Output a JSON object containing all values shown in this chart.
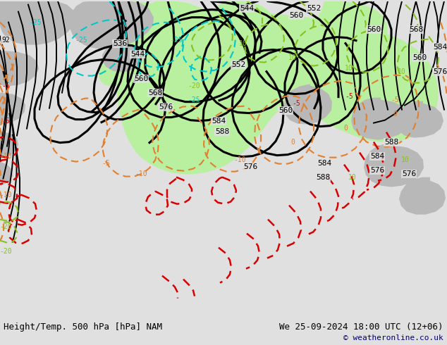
{
  "title_left": "Height/Temp. 500 hPa [hPa] NAM",
  "title_right": "We 25-09-2024 18:00 UTC (12+06)",
  "copyright": "© weatheronline.co.uk",
  "bg_color": "#e0e0e0",
  "map_bg": "#d8d8d8",
  "green": "#b8f0a0",
  "gray_land": "#b8b8b8",
  "figsize": [
    6.34,
    4.9
  ],
  "dpi": 100,
  "lw_thick": 2.2,
  "lw_thin": 1.4,
  "orange": "#e08030",
  "cyan": "#00c8c8",
  "red": "#d80000",
  "lime": "#88c020",
  "black": "#000000"
}
